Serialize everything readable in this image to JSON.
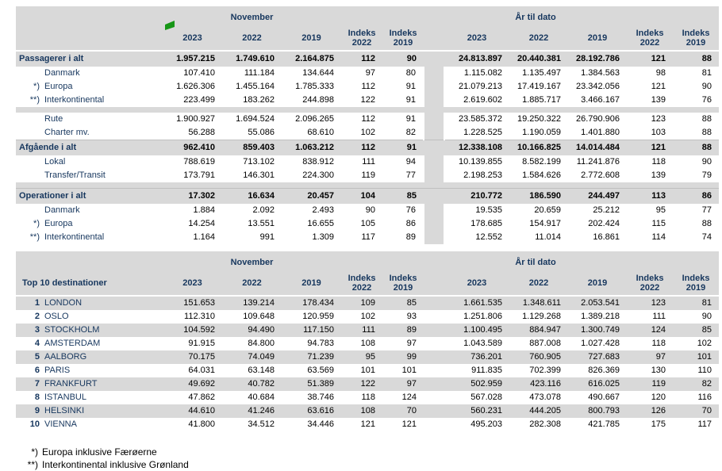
{
  "colors": {
    "header_bg": "#D9D9D9",
    "stripe_bg": "#D9D9D9",
    "navy_text": "#17375E",
    "number_text": "#000000",
    "marker_green": "#169616",
    "bold_row_border": "#BFBFBF"
  },
  "header": {
    "november": "November",
    "ytd": "År til dato"
  },
  "columns": [
    "2023",
    "2022",
    "2019",
    "Indeks\n2022",
    "Indeks\n2019"
  ],
  "icons": {
    "marker": "green-corner-marker"
  },
  "table1": {
    "rows": [
      {
        "type": "bold",
        "prefix": "",
        "label": "Passagerer i alt",
        "values": [
          "1.957.215",
          "1.749.610",
          "2.164.875",
          "112",
          "90",
          "24.813.897",
          "20.440.381",
          "28.192.786",
          "121",
          "88"
        ]
      },
      {
        "type": "sub",
        "prefix": "",
        "label": "Danmark",
        "values": [
          "107.410",
          "111.184",
          "134.644",
          "97",
          "80",
          "1.115.082",
          "1.135.497",
          "1.384.563",
          "98",
          "81"
        ]
      },
      {
        "type": "sub",
        "prefix": "*)",
        "label": "Europa",
        "values": [
          "1.626.306",
          "1.455.164",
          "1.785.333",
          "112",
          "91",
          "21.079.213",
          "17.419.167",
          "23.342.056",
          "121",
          "90"
        ]
      },
      {
        "type": "sub",
        "prefix": "**)",
        "label": "Interkontinental",
        "values": [
          "223.499",
          "183.262",
          "244.898",
          "122",
          "91",
          "2.619.602",
          "1.885.717",
          "3.466.167",
          "139",
          "76"
        ]
      },
      {
        "type": "sep"
      },
      {
        "type": "sub",
        "prefix": "",
        "label": "Rute",
        "values": [
          "1.900.927",
          "1.694.524",
          "2.096.265",
          "112",
          "91",
          "23.585.372",
          "19.250.322",
          "26.790.906",
          "123",
          "88"
        ]
      },
      {
        "type": "sub",
        "prefix": "",
        "label": "Charter mv.",
        "values": [
          "56.288",
          "55.086",
          "68.610",
          "102",
          "82",
          "1.228.525",
          "1.190.059",
          "1.401.880",
          "103",
          "88"
        ]
      },
      {
        "type": "bold",
        "prefix": "",
        "label": "Afgående i alt",
        "values": [
          "962.410",
          "859.403",
          "1.063.212",
          "112",
          "91",
          "12.338.108",
          "10.166.825",
          "14.014.484",
          "121",
          "88"
        ]
      },
      {
        "type": "sub",
        "prefix": "",
        "label": "Lokal",
        "values": [
          "788.619",
          "713.102",
          "838.912",
          "111",
          "94",
          "10.139.855",
          "8.582.199",
          "11.241.876",
          "118",
          "90"
        ]
      },
      {
        "type": "sub",
        "prefix": "",
        "label": "Transfer/Transit",
        "values": [
          "173.791",
          "146.301",
          "224.300",
          "119",
          "77",
          "2.198.253",
          "1.584.626",
          "2.772.608",
          "139",
          "79"
        ]
      },
      {
        "type": "sep"
      },
      {
        "type": "bold",
        "prefix": "",
        "label": "Operationer i alt",
        "values": [
          "17.302",
          "16.634",
          "20.457",
          "104",
          "85",
          "210.772",
          "186.590",
          "244.497",
          "113",
          "86"
        ]
      },
      {
        "type": "sub",
        "prefix": "",
        "label": "Danmark",
        "values": [
          "1.884",
          "2.092",
          "2.493",
          "90",
          "76",
          "19.535",
          "20.659",
          "25.212",
          "95",
          "77"
        ]
      },
      {
        "type": "sub",
        "prefix": "*)",
        "label": "Europa",
        "values": [
          "14.254",
          "13.551",
          "16.655",
          "105",
          "86",
          "178.685",
          "154.917",
          "202.424",
          "115",
          "88"
        ]
      },
      {
        "type": "sub",
        "prefix": "**)",
        "label": "Interkontinental",
        "values": [
          "1.164",
          "991",
          "1.309",
          "117",
          "89",
          "12.552",
          "11.014",
          "16.861",
          "114",
          "74"
        ]
      }
    ]
  },
  "table2": {
    "title": "Top 10 destinationer",
    "rows": [
      {
        "type": "sub",
        "rank": "1",
        "label": "LONDON",
        "values": [
          "151.653",
          "139.214",
          "178.434",
          "109",
          "85",
          "1.661.535",
          "1.348.611",
          "2.053.541",
          "123",
          "81"
        ]
      },
      {
        "type": "sub",
        "rank": "2",
        "label": "OSLO",
        "values": [
          "112.310",
          "109.648",
          "120.959",
          "102",
          "93",
          "1.251.806",
          "1.129.268",
          "1.389.218",
          "111",
          "90"
        ]
      },
      {
        "type": "sub",
        "rank": "3",
        "label": "STOCKHOLM",
        "values": [
          "104.592",
          "94.490",
          "117.150",
          "111",
          "89",
          "1.100.495",
          "884.947",
          "1.300.749",
          "124",
          "85"
        ]
      },
      {
        "type": "sub",
        "rank": "4",
        "label": "AMSTERDAM",
        "values": [
          "91.915",
          "84.800",
          "94.783",
          "108",
          "97",
          "1.043.589",
          "887.008",
          "1.027.428",
          "118",
          "102"
        ]
      },
      {
        "type": "sub",
        "rank": "5",
        "label": "AALBORG",
        "values": [
          "70.175",
          "74.049",
          "71.239",
          "95",
          "99",
          "736.201",
          "760.905",
          "727.683",
          "97",
          "101"
        ]
      },
      {
        "type": "sub",
        "rank": "6",
        "label": "PARIS",
        "values": [
          "64.031",
          "63.148",
          "63.569",
          "101",
          "101",
          "911.835",
          "702.399",
          "826.369",
          "130",
          "110"
        ]
      },
      {
        "type": "sub",
        "rank": "7",
        "label": "FRANKFURT",
        "values": [
          "49.692",
          "40.782",
          "51.389",
          "122",
          "97",
          "502.959",
          "423.116",
          "616.025",
          "119",
          "82"
        ]
      },
      {
        "type": "sub",
        "rank": "8",
        "label": "ISTANBUL",
        "values": [
          "47.862",
          "40.684",
          "38.746",
          "118",
          "124",
          "567.028",
          "473.078",
          "490.667",
          "120",
          "116"
        ]
      },
      {
        "type": "sub",
        "rank": "9",
        "label": "HELSINKI",
        "values": [
          "44.610",
          "41.246",
          "63.616",
          "108",
          "70",
          "560.231",
          "444.205",
          "800.793",
          "126",
          "70"
        ]
      },
      {
        "type": "sub",
        "rank": "10",
        "label": "VIENNA",
        "values": [
          "41.800",
          "34.512",
          "34.446",
          "121",
          "121",
          "495.203",
          "282.308",
          "421.785",
          "175",
          "117"
        ]
      }
    ]
  },
  "footnotes": [
    {
      "prefix": "*)",
      "text": "Europa inklusive Færøerne"
    },
    {
      "prefix": "**)",
      "text": "Interkontinental inklusive Grønland"
    }
  ]
}
